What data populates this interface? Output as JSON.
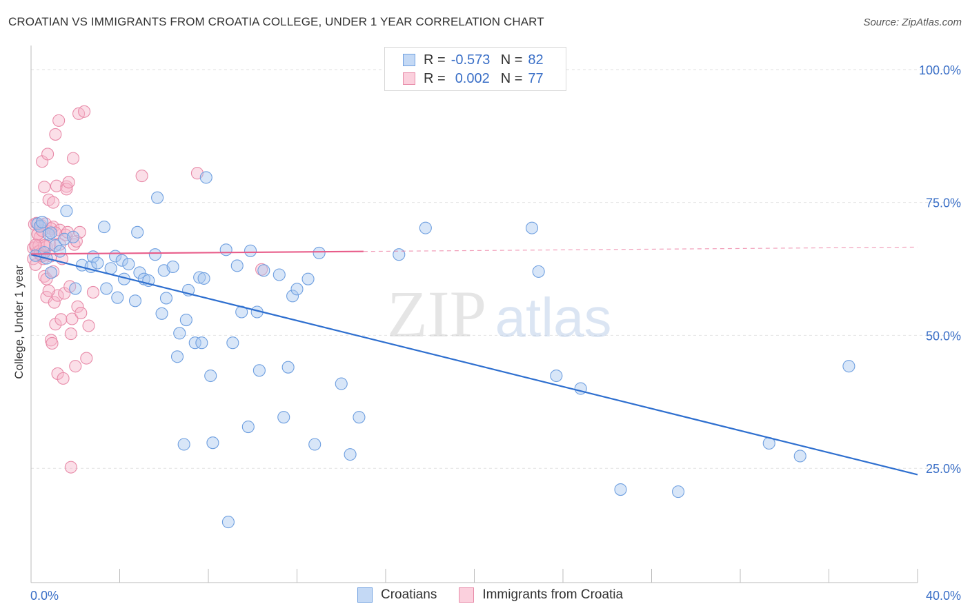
{
  "title": "CROATIAN VS IMMIGRANTS FROM CROATIA COLLEGE, UNDER 1 YEAR CORRELATION CHART",
  "source": "Source: ZipAtlas.com",
  "watermark": {
    "zip": "ZIP",
    "atlas": "atlas"
  },
  "legend": {
    "rows": [
      {
        "r_label": "R =",
        "r_value": "-0.573",
        "n_label": "N =",
        "n_value": "82"
      },
      {
        "r_label": "R =",
        "r_value": "0.002",
        "n_label": "N =",
        "n_value": "77"
      }
    ]
  },
  "colors": {
    "blue_fill": "#a9c8f0",
    "blue_stroke": "#6e9fe0",
    "blue_line": "#2e6fcf",
    "pink_fill": "#f7b9cc",
    "pink_stroke": "#e88aa8",
    "pink_line": "#e85d8a",
    "tick_label": "#3a6fc7",
    "grid": "#e2e2e2"
  },
  "chart_data": {
    "type": "scatter",
    "ylabel": "College, Under 1 year",
    "xlim": [
      0,
      40
    ],
    "ylim": [
      3.5,
      104
    ],
    "x_tick_labels": {
      "min": "0.0%",
      "max": "40.0%"
    },
    "y_ticks": [
      {
        "value": 25,
        "label": "25.0%"
      },
      {
        "value": 50,
        "label": "50.0%"
      },
      {
        "value": 75,
        "label": "75.0%"
      },
      {
        "value": 100,
        "label": "100.0%"
      }
    ],
    "series": [
      {
        "name": "Croatians",
        "color": "blue",
        "trend": {
          "x0": 0,
          "y0": 65.2,
          "x1": 40,
          "y1": 23.8,
          "dashed_from": null
        },
        "points": [
          [
            0.2,
            65.0
          ],
          [
            0.3,
            71.0
          ],
          [
            0.4,
            70.5
          ],
          [
            0.5,
            71.3
          ],
          [
            0.6,
            65.6
          ],
          [
            0.7,
            64.5
          ],
          [
            0.8,
            69.0
          ],
          [
            0.9,
            61.8
          ],
          [
            1.1,
            66.9
          ],
          [
            1.3,
            65.8
          ],
          [
            1.5,
            68.1
          ],
          [
            1.6,
            73.4
          ],
          [
            1.9,
            68.5
          ],
          [
            2.0,
            58.8
          ],
          [
            2.3,
            63.2
          ],
          [
            2.7,
            62.9
          ],
          [
            2.8,
            64.8
          ],
          [
            3.0,
            63.6
          ],
          [
            3.3,
            70.4
          ],
          [
            3.4,
            58.8
          ],
          [
            3.6,
            62.6
          ],
          [
            3.8,
            64.9
          ],
          [
            3.9,
            57.1
          ],
          [
            4.1,
            64.1
          ],
          [
            4.2,
            60.6
          ],
          [
            4.4,
            63.4
          ],
          [
            4.7,
            56.5
          ],
          [
            4.8,
            69.4
          ],
          [
            4.9,
            61.8
          ],
          [
            5.1,
            60.6
          ],
          [
            5.3,
            60.3
          ],
          [
            5.6,
            65.2
          ],
          [
            5.7,
            75.9
          ],
          [
            5.9,
            54.1
          ],
          [
            6.0,
            62.2
          ],
          [
            6.1,
            57.0
          ],
          [
            6.4,
            62.9
          ],
          [
            6.6,
            46.0
          ],
          [
            6.7,
            50.4
          ],
          [
            6.9,
            29.5
          ],
          [
            7.0,
            52.9
          ],
          [
            7.1,
            58.5
          ],
          [
            7.4,
            48.6
          ],
          [
            7.6,
            60.9
          ],
          [
            7.7,
            48.6
          ],
          [
            7.8,
            60.7
          ],
          [
            7.9,
            79.7
          ],
          [
            8.1,
            42.4
          ],
          [
            8.2,
            29.8
          ],
          [
            8.8,
            66.1
          ],
          [
            8.9,
            14.9
          ],
          [
            9.1,
            48.6
          ],
          [
            9.3,
            63.1
          ],
          [
            9.5,
            54.4
          ],
          [
            9.8,
            32.8
          ],
          [
            9.9,
            65.9
          ],
          [
            10.2,
            54.4
          ],
          [
            10.3,
            43.4
          ],
          [
            10.5,
            62.2
          ],
          [
            11.2,
            61.4
          ],
          [
            11.4,
            34.6
          ],
          [
            11.6,
            44.0
          ],
          [
            11.8,
            57.4
          ],
          [
            12.0,
            58.7
          ],
          [
            12.5,
            60.6
          ],
          [
            12.8,
            29.5
          ],
          [
            13.0,
            65.5
          ],
          [
            14.0,
            40.9
          ],
          [
            14.4,
            27.6
          ],
          [
            14.8,
            34.6
          ],
          [
            16.6,
            65.2
          ],
          [
            17.8,
            70.2
          ],
          [
            22.6,
            70.2
          ],
          [
            22.9,
            62.0
          ],
          [
            23.7,
            42.4
          ],
          [
            24.8,
            40.0
          ],
          [
            26.6,
            21.0
          ],
          [
            29.2,
            20.6
          ],
          [
            33.3,
            29.7
          ],
          [
            34.7,
            27.3
          ],
          [
            36.9,
            44.2
          ],
          [
            0.9,
            69.3
          ]
        ]
      },
      {
        "name": "Immigrants from Croatia",
        "color": "pink",
        "trend": {
          "x0": 0,
          "y0": 65.3,
          "x1": 40,
          "y1": 66.6,
          "dashed_from": 15
        },
        "points": [
          [
            0.1,
            66.4
          ],
          [
            0.1,
            64.4
          ],
          [
            0.15,
            70.9
          ],
          [
            0.2,
            66.7
          ],
          [
            0.2,
            63.3
          ],
          [
            0.25,
            71.1
          ],
          [
            0.3,
            69.1
          ],
          [
            0.3,
            65.7
          ],
          [
            0.35,
            66.9
          ],
          [
            0.4,
            65.9
          ],
          [
            0.4,
            68.5
          ],
          [
            0.45,
            70.7
          ],
          [
            0.5,
            65.1
          ],
          [
            0.5,
            82.7
          ],
          [
            0.55,
            64.4
          ],
          [
            0.6,
            61.1
          ],
          [
            0.6,
            77.9
          ],
          [
            0.65,
            71.0
          ],
          [
            0.7,
            66.7
          ],
          [
            0.7,
            57.2
          ],
          [
            0.75,
            84.1
          ],
          [
            0.8,
            69.6
          ],
          [
            0.8,
            75.5
          ],
          [
            0.85,
            67.1
          ],
          [
            0.9,
            64.9
          ],
          [
            0.9,
            49.1
          ],
          [
            0.95,
            48.5
          ],
          [
            1.0,
            75.0
          ],
          [
            1.0,
            70.4
          ],
          [
            1.05,
            56.2
          ],
          [
            1.1,
            87.8
          ],
          [
            1.1,
            52.1
          ],
          [
            1.15,
            78.1
          ],
          [
            1.2,
            57.5
          ],
          [
            1.2,
            42.8
          ],
          [
            1.25,
            90.4
          ],
          [
            1.3,
            69.8
          ],
          [
            1.35,
            53.0
          ],
          [
            1.4,
            64.4
          ],
          [
            1.45,
            41.9
          ],
          [
            1.5,
            57.9
          ],
          [
            1.55,
            68.9
          ],
          [
            1.6,
            78.0
          ],
          [
            1.6,
            77.5
          ],
          [
            1.65,
            69.4
          ],
          [
            1.7,
            78.8
          ],
          [
            1.75,
            59.2
          ],
          [
            1.8,
            50.3
          ],
          [
            1.85,
            53.1
          ],
          [
            1.9,
            83.3
          ],
          [
            1.95,
            67.1
          ],
          [
            2.0,
            44.2
          ],
          [
            2.05,
            67.7
          ],
          [
            2.1,
            55.4
          ],
          [
            2.15,
            91.7
          ],
          [
            2.2,
            69.4
          ],
          [
            2.25,
            54.2
          ],
          [
            2.4,
            92.1
          ],
          [
            2.5,
            45.7
          ],
          [
            2.6,
            51.8
          ],
          [
            2.8,
            58.1
          ],
          [
            0.5,
            64.9
          ],
          [
            0.7,
            60.6
          ],
          [
            0.3,
            69.0
          ],
          [
            0.4,
            65.3
          ],
          [
            1.3,
            67.1
          ],
          [
            0.6,
            66.9
          ],
          [
            0.9,
            70.1
          ],
          [
            1.1,
            69.3
          ],
          [
            0.2,
            67.0
          ],
          [
            0.5,
            69.7
          ],
          [
            5.0,
            80.0
          ],
          [
            7.5,
            80.5
          ],
          [
            10.4,
            62.4
          ],
          [
            1.8,
            25.2
          ],
          [
            1.0,
            62.0
          ],
          [
            0.8,
            58.4
          ]
        ]
      }
    ]
  }
}
